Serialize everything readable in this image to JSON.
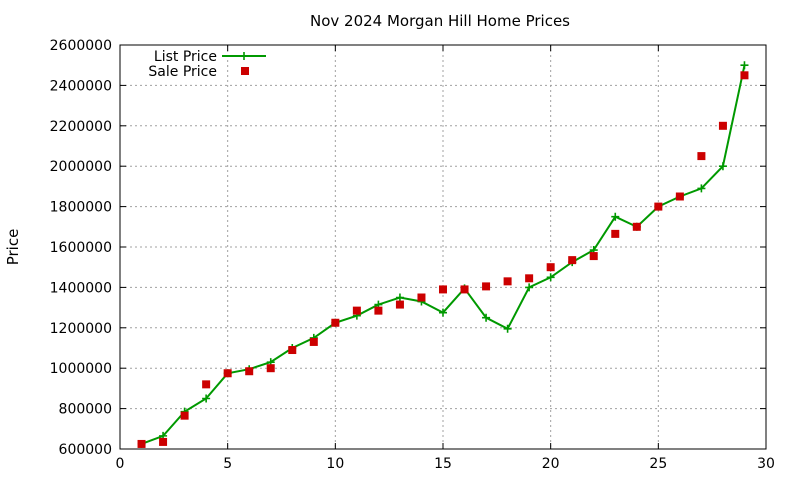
{
  "chart_data": {
    "type": "line",
    "title": "Nov 2024 Morgan Hill Home Prices",
    "xlabel": "",
    "ylabel": "Price",
    "xlim": [
      0,
      30
    ],
    "ylim": [
      600000,
      2600000
    ],
    "xticks": [
      0,
      5,
      10,
      15,
      20,
      25,
      30
    ],
    "yticks": [
      600000,
      800000,
      1000000,
      1200000,
      1400000,
      1600000,
      1800000,
      2000000,
      2200000,
      2400000,
      2600000
    ],
    "grid": true,
    "legend_position": "top-left",
    "x": [
      1,
      2,
      3,
      4,
      5,
      6,
      7,
      8,
      9,
      10,
      11,
      12,
      13,
      14,
      15,
      16,
      17,
      18,
      19,
      20,
      21,
      22,
      23,
      24,
      25,
      26,
      27,
      28,
      29
    ],
    "series": [
      {
        "name": "List Price",
        "style": "linespoints",
        "color": "#009900",
        "values": [
          625000,
          665000,
          785000,
          850000,
          975000,
          995000,
          1030000,
          1100000,
          1150000,
          1225000,
          1260000,
          1315000,
          1350000,
          1330000,
          1275000,
          1395000,
          1250000,
          1195000,
          1400000,
          1450000,
          1525000,
          1585000,
          1750000,
          1700000,
          1800000,
          1850000,
          1890000,
          2000000,
          2500000
        ]
      },
      {
        "name": "Sale Price",
        "style": "points",
        "color": "#cc0000",
        "values": [
          625000,
          635000,
          765000,
          920000,
          975000,
          985000,
          1000000,
          1090000,
          1130000,
          1225000,
          1285000,
          1285000,
          1315000,
          1350000,
          1390000,
          1390000,
          1405000,
          1430000,
          1445000,
          1500000,
          1535000,
          1555000,
          1665000,
          1700000,
          1800000,
          1850000,
          2050000,
          2200000,
          2450000
        ]
      }
    ]
  }
}
